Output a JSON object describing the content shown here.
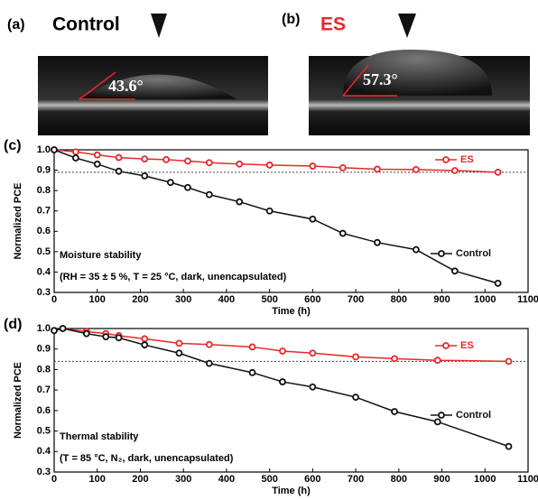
{
  "panels": [
    {
      "label": "(a)",
      "title": "Control",
      "angle": "43.6°"
    },
    {
      "label": "(b)",
      "title": "ES",
      "angle": "57.3°"
    }
  ],
  "chart_data": [
    {
      "type": "line",
      "panel": "(c)",
      "xlabel": "Time (h)",
      "ylabel": "Normalized PCE",
      "xlim": [
        0,
        1100
      ],
      "xticks": [
        0,
        100,
        200,
        300,
        400,
        500,
        600,
        700,
        800,
        900,
        1000,
        1100
      ],
      "ylim": [
        0.3,
        1.0
      ],
      "yticks": [
        0.3,
        0.4,
        0.5,
        0.6,
        0.7,
        0.8,
        0.9,
        {
          "value": 1.0,
          "label": "1.0"
        }
      ],
      "ref_line": 0.89,
      "annotations": [
        "Moisture stability",
        "(RH = 35 ± 5 %, T = 25 °C, dark, unencapsulated)"
      ],
      "series": [
        {
          "name": "ES",
          "color": "#e8282b",
          "x": [
            0,
            50,
            100,
            150,
            210,
            260,
            310,
            360,
            430,
            500,
            600,
            670,
            750,
            840,
            930,
            1030
          ],
          "values": [
            1.0,
            0.99,
            0.975,
            0.962,
            0.955,
            0.952,
            0.945,
            0.937,
            0.93,
            0.925,
            0.92,
            0.912,
            0.905,
            0.903,
            0.898,
            0.89
          ]
        },
        {
          "name": "Control",
          "color": "#111111",
          "x": [
            0,
            50,
            100,
            150,
            210,
            270,
            310,
            360,
            430,
            500,
            600,
            670,
            750,
            840,
            930,
            1030
          ],
          "values": [
            1.0,
            0.96,
            0.93,
            0.895,
            0.872,
            0.84,
            0.815,
            0.78,
            0.745,
            0.7,
            0.66,
            0.59,
            0.545,
            0.51,
            0.405,
            0.345
          ]
        }
      ]
    },
    {
      "type": "line",
      "panel": "(d)",
      "xlabel": "Time (h)",
      "ylabel": "Normalized PCE",
      "xlim": [
        0,
        1100
      ],
      "xticks": [
        0,
        100,
        200,
        300,
        400,
        500,
        600,
        700,
        800,
        900,
        1000,
        1100
      ],
      "ylim": [
        0.3,
        1.0
      ],
      "yticks": [
        0.3,
        0.4,
        0.5,
        0.6,
        0.7,
        0.8,
        0.9,
        {
          "value": 1.0,
          "label": "1.0"
        }
      ],
      "ref_line": 0.84,
      "annotations": [
        "Thermal stability",
        "(T = 85 °C, N₂, dark, unencapsulated)"
      ],
      "series": [
        {
          "name": "ES",
          "color": "#e8282b",
          "x": [
            0,
            20,
            75,
            120,
            150,
            210,
            290,
            360,
            460,
            530,
            600,
            700,
            790,
            890,
            1055
          ],
          "values": [
            0.99,
            1.0,
            0.985,
            0.975,
            0.965,
            0.95,
            0.928,
            0.922,
            0.91,
            0.89,
            0.88,
            0.862,
            0.853,
            0.845,
            0.84
          ]
        },
        {
          "name": "Control",
          "color": "#111111",
          "x": [
            0,
            20,
            75,
            120,
            150,
            210,
            290,
            360,
            460,
            530,
            600,
            700,
            790,
            890,
            1055
          ],
          "values": [
            0.99,
            1.0,
            0.975,
            0.96,
            0.955,
            0.92,
            0.88,
            0.83,
            0.785,
            0.74,
            0.715,
            0.665,
            0.595,
            0.545,
            0.425
          ]
        }
      ]
    }
  ]
}
